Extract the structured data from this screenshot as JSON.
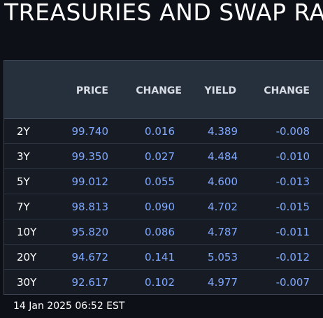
{
  "title": "TREASURIES AND SWAP RA",
  "columns": {
    "price": "PRICE",
    "change": "CHANGE",
    "yield": "YIELD",
    "yield_change": "CHANGE"
  },
  "rows": [
    {
      "tenor": "2Y",
      "price": "99.740",
      "change": "0.016",
      "yield": "4.389",
      "yield_change": "-0.008"
    },
    {
      "tenor": "3Y",
      "price": "99.350",
      "change": "0.027",
      "yield": "4.484",
      "yield_change": "-0.010"
    },
    {
      "tenor": "5Y",
      "price": "99.012",
      "change": "0.055",
      "yield": "4.600",
      "yield_change": "-0.013"
    },
    {
      "tenor": "7Y",
      "price": "98.813",
      "change": "0.090",
      "yield": "4.702",
      "yield_change": "-0.015"
    },
    {
      "tenor": "10Y",
      "price": "95.820",
      "change": "0.086",
      "yield": "4.787",
      "yield_change": "-0.011"
    },
    {
      "tenor": "20Y",
      "price": "94.672",
      "change": "0.141",
      "yield": "5.053",
      "yield_change": "-0.012"
    },
    {
      "tenor": "30Y",
      "price": "92.617",
      "change": "0.102",
      "yield": "4.977",
      "yield_change": "-0.007"
    }
  ],
  "timestamp": "14 Jan 2025 06:52 EST",
  "colors": {
    "background": "#0d1117",
    "header_bg": "#262f3c",
    "value_text": "#7fa8ff",
    "label_text": "#ffffff"
  }
}
